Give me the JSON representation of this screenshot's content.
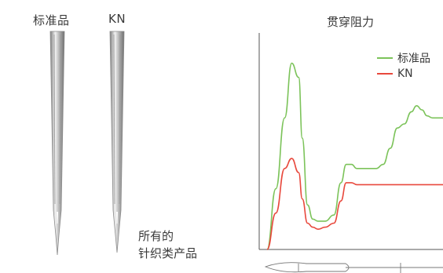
{
  "needles": {
    "left_label": "标准品",
    "right_label": "KN",
    "note_line1": "所有的",
    "note_line2": "针织类产品"
  },
  "colors": {
    "standard": "#7cc35a",
    "kn": "#e8483c",
    "axis": "#555555",
    "needle_dark": "#8a8a8a",
    "needle_light": "#e6e6e6"
  },
  "chart_data": {
    "type": "line",
    "title": "贯穿阻力",
    "xlabel": "",
    "ylabel": "",
    "grid": false,
    "legend_position": "top-right",
    "series": [
      {
        "name": "标准品",
        "color": "#7cc35a",
        "x": [
          0,
          5,
          10,
          14,
          18,
          20,
          23,
          26,
          29,
          33,
          38,
          42,
          45,
          48,
          51,
          54,
          58,
          62,
          66,
          70,
          74,
          78,
          82,
          85,
          88,
          91,
          94,
          100
        ],
        "y": [
          0,
          30,
          65,
          92,
          85,
          55,
          22,
          15,
          14,
          14,
          17,
          33,
          42,
          42,
          40,
          40,
          40,
          40,
          42,
          50,
          60,
          62,
          68,
          71,
          69,
          66,
          65,
          65
        ]
      },
      {
        "name": "KN",
        "color": "#e8483c",
        "x": [
          0,
          5,
          10,
          14,
          18,
          20,
          23,
          26,
          29,
          33,
          38,
          42,
          45,
          48,
          51,
          54,
          58,
          62,
          66,
          70,
          74,
          78,
          82,
          85,
          88,
          91,
          94,
          100
        ],
        "y": [
          0,
          18,
          40,
          45,
          38,
          25,
          13,
          11,
          10,
          11,
          13,
          24,
          33,
          33,
          32,
          32,
          32,
          32,
          32,
          32,
          32,
          32,
          32,
          32,
          32,
          32,
          32,
          32
        ]
      }
    ],
    "xlim": [
      0,
      100
    ],
    "ylim": [
      0,
      100
    ]
  }
}
